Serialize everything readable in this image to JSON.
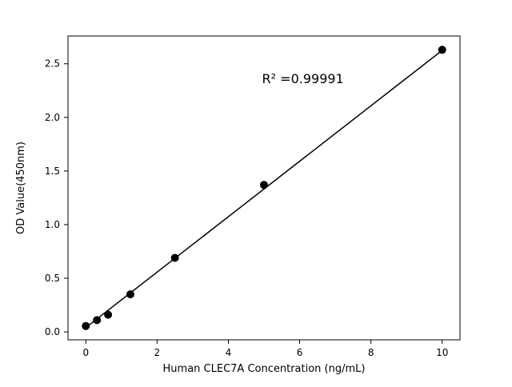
{
  "figure": {
    "background": "#ffffff"
  },
  "chart_data": {
    "type": "scatter",
    "title": "",
    "xlabel": "Human CLEC7A Concentration (ng/mL)",
    "ylabel": "OD Value(450nm)",
    "annotation": {
      "text": "R² =0.99991",
      "fx": 0.495,
      "fy": 0.155
    },
    "points": {
      "x": [
        0,
        0.3125,
        0.625,
        1.25,
        2.5,
        5,
        10
      ],
      "y": [
        0.055,
        0.11,
        0.16,
        0.35,
        0.69,
        1.37,
        2.63
      ]
    },
    "fit_line": {
      "x": [
        0,
        10
      ],
      "y": [
        0.04,
        2.625
      ]
    },
    "xlim": [
      -0.5,
      10.5
    ],
    "ylim": [
      -0.074,
      2.759
    ],
    "xticks": [
      0,
      2,
      4,
      6,
      8,
      10
    ],
    "yticks": [
      0.0,
      0.5,
      1.0,
      1.5,
      2.0,
      2.5
    ],
    "marker_color": "#000000",
    "line_color": "#000000",
    "spine_color": "#000000",
    "grid": false,
    "legend": "none"
  }
}
